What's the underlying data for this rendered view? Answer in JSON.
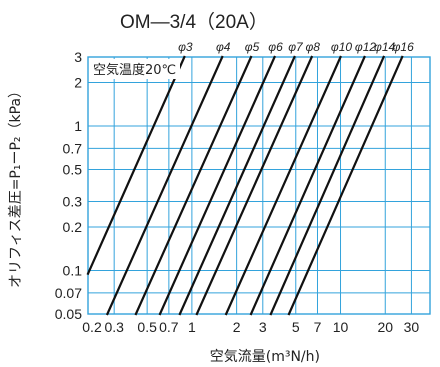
{
  "chart_data": {
    "type": "line",
    "title": "OM—3/4（20A）",
    "note": "空気温度20℃",
    "xlabel": "空気流量(m³N/h)",
    "ylabel": "オリフィス差圧=P₁ーP₂（kPa）",
    "x_scale": "log",
    "y_scale": "log",
    "xlim": [
      0.2,
      40
    ],
    "ylim": [
      0.05,
      3
    ],
    "grid": true,
    "grid_color": "#33a3dc",
    "line_color": "#111111",
    "x_ticks": [
      0.2,
      0.3,
      0.5,
      0.7,
      1,
      2,
      3,
      5,
      7,
      10,
      20,
      30
    ],
    "x_tick_labels": [
      "0.2",
      "0.3",
      "0.5",
      "0.7",
      "1",
      "2",
      "3",
      "5",
      "7",
      "10",
      "20",
      "30"
    ],
    "y_ticks": [
      0.05,
      0.07,
      0.1,
      0.2,
      0.3,
      0.5,
      0.7,
      1,
      2,
      3
    ],
    "y_tick_labels": [
      "0.05",
      "0.07",
      "0.1",
      "0.2",
      "0.3",
      "0.5",
      "0.7",
      "1",
      "2",
      "3"
    ],
    "series": [
      {
        "name": "φ3",
        "points": [
          [
            0.2,
            0.095
          ],
          [
            0.89,
            3.0
          ]
        ]
      },
      {
        "name": "φ4",
        "points": [
          [
            0.27,
            0.05
          ],
          [
            1.6,
            3.0
          ]
        ]
      },
      {
        "name": "φ5",
        "points": [
          [
            0.42,
            0.05
          ],
          [
            2.5,
            3.0
          ]
        ]
      },
      {
        "name": "φ6",
        "points": [
          [
            0.61,
            0.05
          ],
          [
            3.6,
            3.0
          ]
        ]
      },
      {
        "name": "φ7",
        "points": [
          [
            0.83,
            0.05
          ],
          [
            4.9,
            3.0
          ]
        ]
      },
      {
        "name": "φ8",
        "points": [
          [
            1.08,
            0.05
          ],
          [
            6.4,
            3.0
          ]
        ]
      },
      {
        "name": "φ10",
        "points": [
          [
            1.7,
            0.05
          ],
          [
            10.0,
            3.0
          ]
        ]
      },
      {
        "name": "φ12",
        "points": [
          [
            2.5,
            0.05
          ],
          [
            14.5,
            3.0
          ]
        ]
      },
      {
        "name": "φ14",
        "points": [
          [
            3.4,
            0.05
          ],
          [
            19.5,
            3.0
          ]
        ]
      },
      {
        "name": "φ16",
        "points": [
          [
            4.5,
            0.05
          ],
          [
            26.0,
            3.0
          ]
        ]
      }
    ]
  }
}
